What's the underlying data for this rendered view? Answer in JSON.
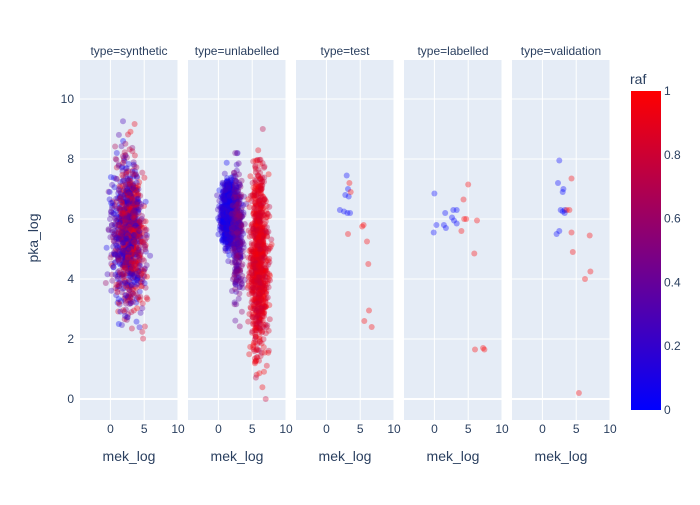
{
  "chart_data": {
    "type": "scatter",
    "facet_by": "type",
    "facets": [
      {
        "title": "type=synthetic"
      },
      {
        "title": "type=unlabelled"
      },
      {
        "title": "type=test"
      },
      {
        "title": "type=labelled"
      },
      {
        "title": "type=validation"
      }
    ],
    "xlabel": "mek_log",
    "ylabel": "pka_log",
    "xlim": [
      -4.5,
      10
    ],
    "ylim": [
      -0.7,
      11.3
    ],
    "x_ticks": [
      0,
      5,
      10
    ],
    "y_ticks": [
      0,
      2,
      4,
      6,
      8,
      10
    ],
    "marker_opacity": 0.35,
    "colorbar": {
      "title": "raf",
      "ticks": [
        0,
        0.2,
        0.4,
        0.6,
        0.8,
        1
      ],
      "colorscale": [
        "#0000ff",
        "#ff0000"
      ],
      "range": [
        0,
        1
      ]
    },
    "background_color": "#e5ecf6",
    "grid": true,
    "series": [
      {
        "facet": "type=test",
        "points": [
          [
            3.0,
            7.45,
            0
          ],
          [
            3.4,
            7.2,
            1
          ],
          [
            3.2,
            7.0,
            0
          ],
          [
            2.8,
            6.8,
            0
          ],
          [
            3.3,
            6.75,
            0
          ],
          [
            3.6,
            6.9,
            1
          ],
          [
            2.0,
            6.3,
            0
          ],
          [
            2.6,
            6.25,
            0
          ],
          [
            3.1,
            6.2,
            0
          ],
          [
            3.5,
            6.2,
            0
          ],
          [
            5.5,
            5.8,
            1
          ],
          [
            5.3,
            5.75,
            1
          ],
          [
            3.2,
            5.5,
            1
          ],
          [
            6.0,
            5.25,
            1
          ],
          [
            6.2,
            4.5,
            1
          ],
          [
            6.3,
            2.95,
            1
          ],
          [
            5.6,
            2.6,
            1
          ],
          [
            6.7,
            2.4,
            1
          ]
        ]
      },
      {
        "facet": "type=labelled",
        "points": [
          [
            0.0,
            6.85,
            0
          ],
          [
            5.0,
            7.15,
            1
          ],
          [
            4.3,
            6.65,
            1
          ],
          [
            2.8,
            6.3,
            0
          ],
          [
            3.3,
            6.3,
            0
          ],
          [
            1.6,
            6.2,
            0
          ],
          [
            2.6,
            6.05,
            0
          ],
          [
            2.9,
            5.95,
            0
          ],
          [
            4.4,
            6.0,
            1
          ],
          [
            4.7,
            6.0,
            1
          ],
          [
            6.3,
            5.95,
            1
          ],
          [
            3.3,
            5.85,
            0
          ],
          [
            0.3,
            5.8,
            0
          ],
          [
            1.4,
            5.8,
            0
          ],
          [
            1.7,
            5.7,
            0
          ],
          [
            4.0,
            5.6,
            1
          ],
          [
            -0.1,
            5.55,
            0
          ],
          [
            5.9,
            4.85,
            1
          ],
          [
            6.0,
            1.65,
            1
          ],
          [
            7.2,
            1.7,
            1
          ],
          [
            7.4,
            1.65,
            1
          ]
        ]
      },
      {
        "facet": "type=validation",
        "points": [
          [
            2.5,
            7.95,
            0
          ],
          [
            2.3,
            7.2,
            0
          ],
          [
            3.1,
            7.0,
            0
          ],
          [
            3.0,
            6.9,
            0
          ],
          [
            4.3,
            7.35,
            1
          ],
          [
            2.7,
            6.3,
            0
          ],
          [
            3.0,
            6.25,
            0
          ],
          [
            3.3,
            6.3,
            0
          ],
          [
            3.6,
            6.3,
            1
          ],
          [
            4.0,
            6.3,
            1
          ],
          [
            3.3,
            6.2,
            0
          ],
          [
            2.5,
            5.6,
            0
          ],
          [
            2.1,
            5.5,
            0
          ],
          [
            4.3,
            5.55,
            1
          ],
          [
            7.0,
            5.45,
            1
          ],
          [
            4.5,
            4.9,
            1
          ],
          [
            7.1,
            4.25,
            1
          ],
          [
            6.3,
            4.0,
            1
          ],
          [
            5.4,
            0.2,
            1
          ]
        ]
      }
    ]
  }
}
